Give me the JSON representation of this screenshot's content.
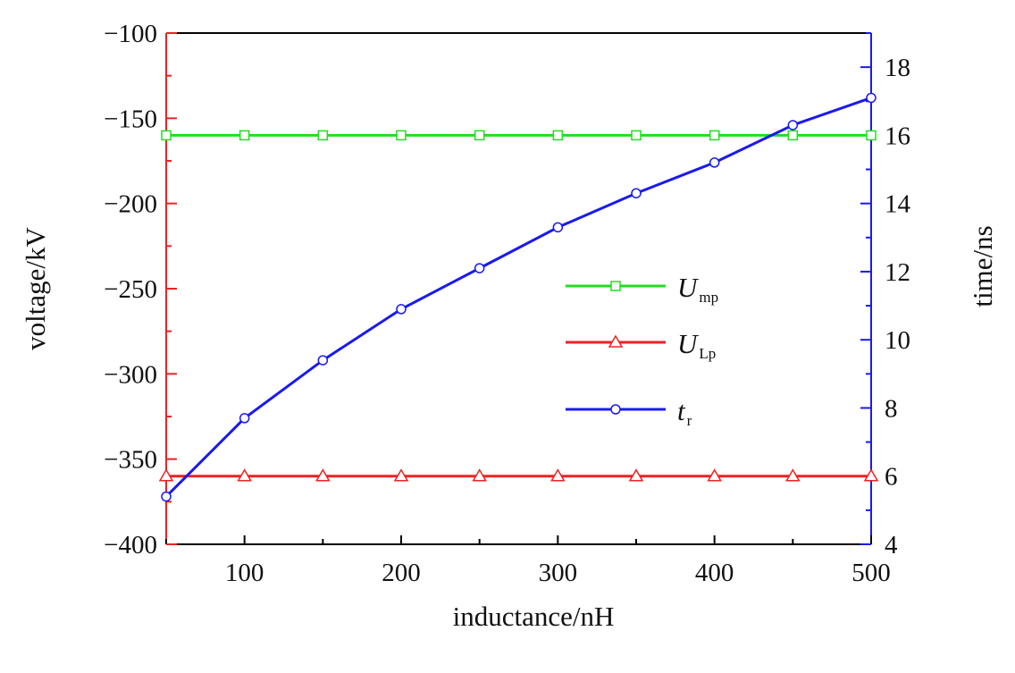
{
  "chart_data": {
    "type": "line",
    "title": "",
    "xlabel": "inductance/nH",
    "ylabel": "voltage/kV",
    "y2label": "time/ns",
    "xlim": [
      50,
      500
    ],
    "ylim": [
      -400,
      -100
    ],
    "y2lim": [
      4,
      19
    ],
    "xticks": [
      "100",
      "200",
      "300",
      "400",
      "500"
    ],
    "yticks": [
      "-100",
      "-150",
      "-200",
      "-250",
      "-300",
      "-350",
      "-400"
    ],
    "y2ticks": [
      "4",
      "6",
      "8",
      "10",
      "12",
      "14",
      "16",
      "18"
    ],
    "x": [
      50,
      100,
      150,
      200,
      250,
      300,
      350,
      400,
      450,
      500
    ],
    "series": [
      {
        "name": "U",
        "sub": "mp",
        "axis": "left",
        "color": "#22dd22",
        "marker": "square",
        "values": [
          -160,
          -160,
          -160,
          -160,
          -160,
          -160,
          -160,
          -160,
          -160,
          -160
        ]
      },
      {
        "name": "U",
        "sub": "Lp",
        "axis": "left",
        "color": "#ee2222",
        "marker": "triangle",
        "values": [
          -360,
          -360,
          -360,
          -360,
          -360,
          -360,
          -360,
          -360,
          -360,
          -360
        ]
      },
      {
        "name": "t",
        "sub": "r",
        "axis": "right",
        "color": "#1a1aee",
        "marker": "circle",
        "values": [
          5.4,
          7.7,
          9.4,
          10.9,
          12.1,
          13.3,
          14.3,
          15.2,
          16.3,
          17.1
        ]
      }
    ],
    "legend_position": "center-right",
    "grid": false
  }
}
